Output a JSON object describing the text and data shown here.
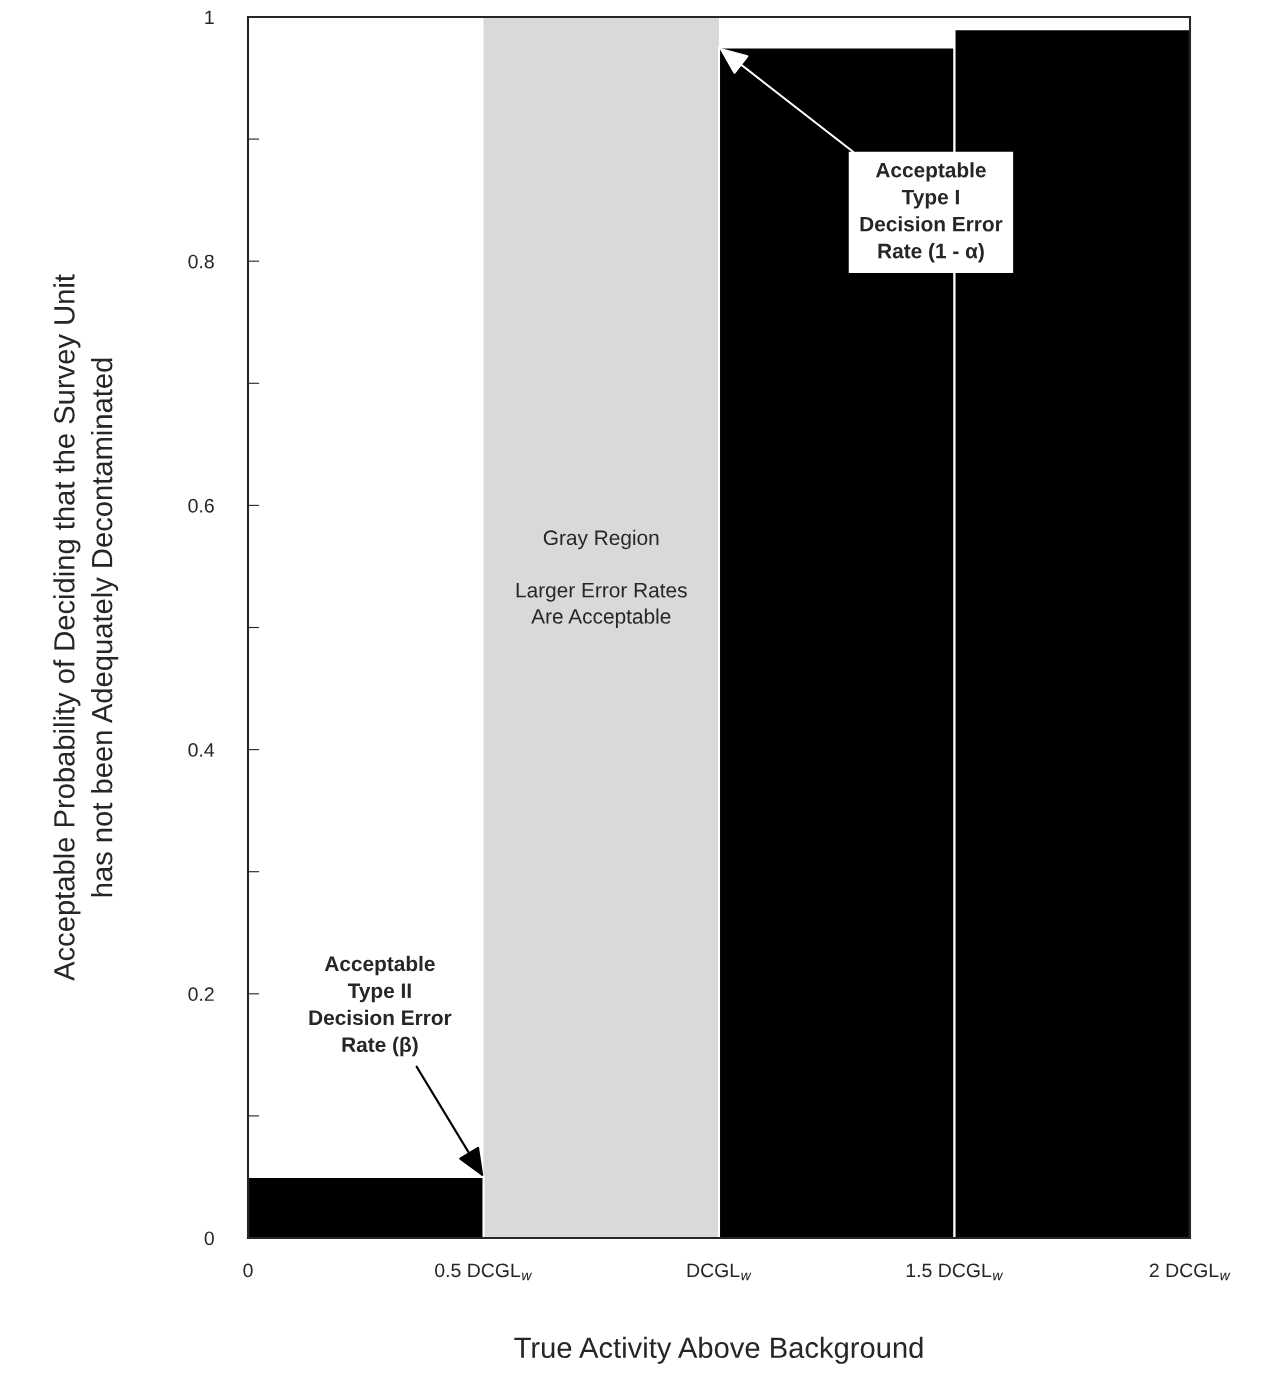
{
  "chart_data": {
    "type": "histogram",
    "xlabel": "True Activity Above Background",
    "ylabel": "Acceptable Probability of Deciding that the Survey Unit\nhas not been Adequately Decontaminated",
    "bins": [
      0,
      0.5,
      1,
      1.5,
      2
    ],
    "values": [
      0.05,
      null,
      0.975,
      0.99
    ],
    "color": "#000000",
    "xlim": [
      0,
      2
    ],
    "xticks": [
      0,
      {
        "value": 0.5,
        "label": "0.5 DCGL$_{w}$"
      },
      {
        "value": 1,
        "label": "DCGL$_{w}$"
      },
      {
        "value": 1.5,
        "label": "1.5 DCGL$_{w}$"
      },
      {
        "value": 2,
        "label": "2 DCGL$_{w}$"
      }
    ],
    "ylim": [
      0,
      1
    ],
    "yticks": [
      0,
      {
        "value": 0.1,
        "label": null
      },
      0.2,
      {
        "value": 0.3,
        "label": null
      },
      0.4,
      {
        "value": 0.5,
        "label": null
      },
      0.6,
      {
        "value": 0.7,
        "label": null
      },
      0.8,
      {
        "value": 0.9,
        "label": null
      },
      1
    ],
    "bands": [
      {
        "axis": "x",
        "from": 0.5,
        "to": 1,
        "label": "Gray Region\n\nLarger Error Rates\nAre Acceptable",
        "color": "#d9d9d9"
      }
    ],
    "annotations": [
      {
        "text": "Acceptable\nType I\nDecision Error\nRate (1 - α)",
        "x": 1,
        "y": 0.975
      },
      {
        "text": "Acceptable\nType II\nDecision Error\nRate (β)",
        "x": 0.5,
        "y": 0.05
      }
    ],
    "grid": false
  }
}
